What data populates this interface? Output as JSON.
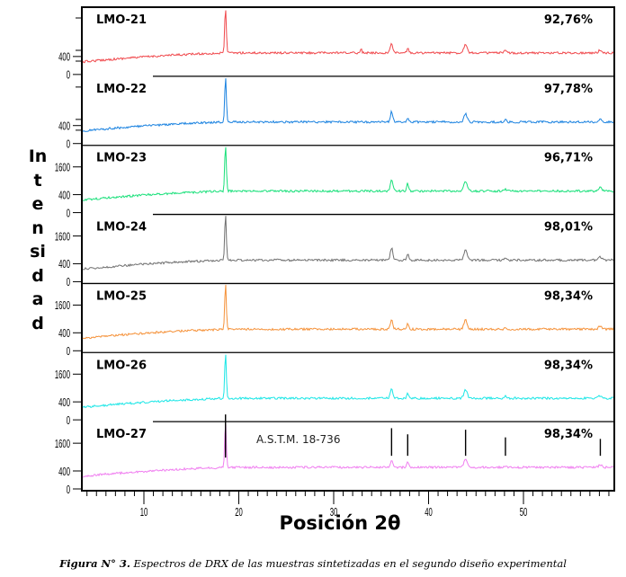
{
  "chart_data": {
    "type": "line",
    "title": "",
    "xlabel": "Posición 2θ",
    "ylabel": "Intensidad",
    "ylabel_letters": [
      "In",
      "t",
      "e",
      "n",
      "si",
      "d",
      "a",
      "d"
    ],
    "xlim": [
      3,
      59.5
    ],
    "xticks_major": [
      10,
      20,
      30,
      40,
      50
    ],
    "xtick_labels": [
      "10",
      "20",
      "30",
      "40",
      "50"
    ],
    "xtick_minor_step": 1,
    "grid": false,
    "reference_label": "A.S.T.M. 18-736",
    "reference_peaks": [
      {
        "x": 18.6,
        "rel": 1.0
      },
      {
        "x": 36.1,
        "rel": 0.55
      },
      {
        "x": 37.8,
        "rel": 0.35
      },
      {
        "x": 43.9,
        "rel": 0.5
      },
      {
        "x": 48.1,
        "rel": 0.25
      },
      {
        "x": 58.1,
        "rel": 0.2
      }
    ],
    "peaks_2theta": [
      18.6,
      36.1,
      37.8,
      43.9,
      48.1,
      58.1
    ],
    "series": [
      {
        "name": "LMO-21",
        "purity": "92,76%",
        "color": "#f0484c",
        "yticks": [
          "400",
          "0"
        ],
        "extra_peaks": [
          {
            "x": 32.9,
            "rel": 0.12
          }
        ],
        "peak_rel": [
          1.0,
          0.22,
          0.1,
          0.2,
          0.05,
          0.06
        ]
      },
      {
        "name": "LMO-22",
        "purity": "97,78%",
        "color": "#1a82e0",
        "yticks": [
          "400",
          "0"
        ],
        "extra_peaks": [],
        "peak_rel": [
          1.0,
          0.22,
          0.08,
          0.17,
          0.04,
          0.06
        ]
      },
      {
        "name": "LMO-23",
        "purity": "96,71%",
        "color": "#19e07a",
        "yticks": [
          "1600",
          "400",
          "0"
        ],
        "extra_peaks": [],
        "peak_rel": [
          1.0,
          0.27,
          0.17,
          0.22,
          0.04,
          0.08
        ]
      },
      {
        "name": "LMO-24",
        "purity": "98,01%",
        "color": "#707070",
        "yticks": [
          "1600",
          "400",
          "0"
        ],
        "extra_peaks": [],
        "peak_rel": [
          1.0,
          0.27,
          0.13,
          0.23,
          0.04,
          0.07
        ]
      },
      {
        "name": "LMO-25",
        "purity": "98,34%",
        "color": "#f5923a",
        "yticks": [
          "1600",
          "400",
          "0"
        ],
        "extra_peaks": [],
        "peak_rel": [
          1.0,
          0.22,
          0.12,
          0.2,
          0.04,
          0.07
        ]
      },
      {
        "name": "LMO-26",
        "purity": "98,34%",
        "color": "#1ae6e6",
        "yticks": [
          "1600",
          "400",
          "0"
        ],
        "extra_peaks": [],
        "peak_rel": [
          1.0,
          0.2,
          0.12,
          0.18,
          0.04,
          0.06
        ]
      },
      {
        "name": "LMO-27",
        "purity": "98,34%",
        "color": "#f07ef0",
        "yticks": [
          "1600",
          "400",
          "0"
        ],
        "extra_peaks": [],
        "peak_rel": [
          1.0,
          0.17,
          0.12,
          0.18,
          0.04,
          0.06
        ]
      }
    ]
  },
  "caption": {
    "bold": "Figura N° 3.",
    "text": " Espectros de DRX de las muestras sintetizadas en el segundo diseño experimental"
  }
}
